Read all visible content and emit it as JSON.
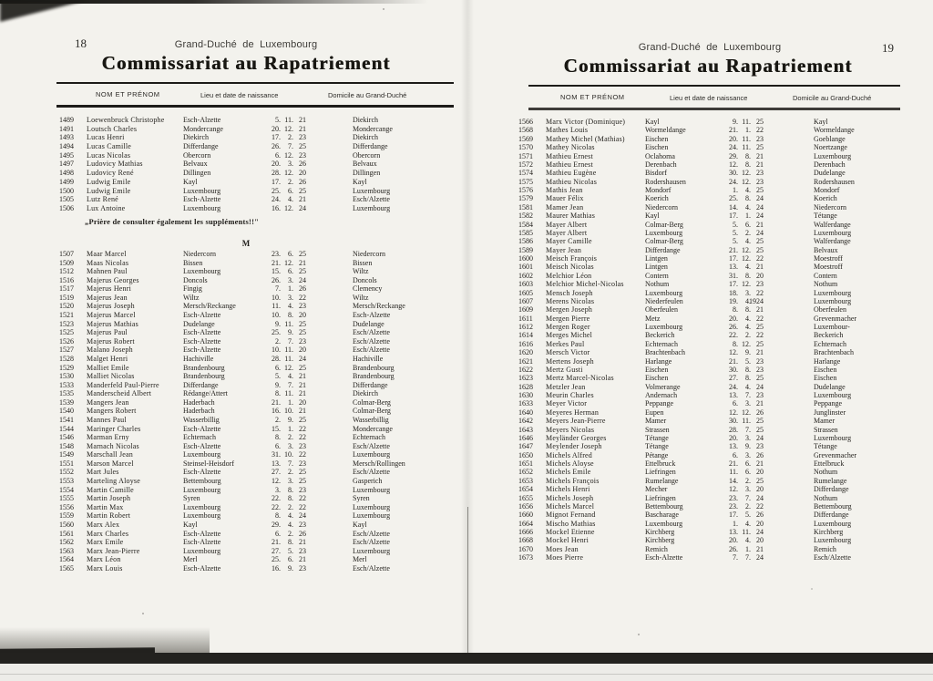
{
  "colors": {
    "paper": "#f3f2ed",
    "ink": "#24221e",
    "rule": "#1d1c19"
  },
  "left_page": {
    "page_number": "18",
    "running_header": "Grand-Duché de Luxembourg",
    "title": "Commissariat au Rapatriement",
    "columns": {
      "name": "NOM ET PRÉNOM",
      "birth": "Lieu et date de naissance",
      "domicile": "Domicile au Grand-Duché"
    },
    "note": "„Prière de consulter également les suppléments!!\"",
    "section_letter": "M",
    "block1_rows": [
      [
        "1489",
        "Loewenbruck Christophe",
        "Esch-Alzette",
        "5. 11. 21",
        "Diekirch"
      ],
      [
        "1491",
        "Loutsch Charles",
        "Mondercange",
        "20. 12. 21",
        "Mondercange"
      ],
      [
        "1493",
        "Lucas Henri",
        "Diekirch",
        "17. 2. 23",
        "Diekirch"
      ],
      [
        "1494",
        "Lucas Camille",
        "Differdange",
        "26. 7. 25",
        "Differdange"
      ],
      [
        "1495",
        "Lucas Nicolas",
        "Obercorn",
        "6. 12. 23",
        "Obercorn"
      ],
      [
        "1497",
        "Ludovicy Mathias",
        "Belvaux",
        "20. 3. 26",
        "Belvaux"
      ],
      [
        "1498",
        "Ludovicy René",
        "Dillingen",
        "28. 12. 20",
        "Dillingen"
      ],
      [
        "1499",
        "Ludwig Emile",
        "Kayl",
        "17. 2. 26",
        "Kayl"
      ],
      [
        "1500",
        "Ludwig Emile",
        "Luxembourg",
        "25. 6. 25",
        "Luxembourg"
      ],
      [
        "1505",
        "Lutz René",
        "Esch-Alzette",
        "24. 4. 21",
        "Esch/Alzette"
      ],
      [
        "1506",
        "Lux Antoine",
        "Luxembourg",
        "16. 12. 24",
        "Luxembourg"
      ]
    ],
    "block2_rows": [
      [
        "1507",
        "Maar Marcel",
        "Niedercorn",
        "23. 6. 25",
        "Niedercorn"
      ],
      [
        "1509",
        "Maas Nicolas",
        "Bissen",
        "21. 12. 21",
        "Bissen"
      ],
      [
        "1512",
        "Mahnen Paul",
        "Luxembourg",
        "15. 6. 25",
        "Wiltz"
      ],
      [
        "1516",
        "Majerus Georges",
        "Doncols",
        "26. 3. 24",
        "Doncols"
      ],
      [
        "1517",
        "Majerus Henri",
        "Fingig",
        "7. 1. 26",
        "Clemency"
      ],
      [
        "1519",
        "Majerus Jean",
        "Wiltz",
        "10. 3. 22",
        "Wiltz"
      ],
      [
        "1520",
        "Majerus Joseph",
        "Mersch/Reckange",
        "11. 4. 23",
        "Mersch/Reckange"
      ],
      [
        "1521",
        "Majerus Marcel",
        "Esch-Alzette",
        "10. 8. 20",
        "Esch-Alzette"
      ],
      [
        "1523",
        "Majerus Mathias",
        "Dudelange",
        "9. 11. 25",
        "Dudelange"
      ],
      [
        "1525",
        "Majerus Paul",
        "Esch-Alzette",
        "25. 9. 25",
        "Esch/Alzette"
      ],
      [
        "1526",
        "Majerus Robert",
        "Esch-Alzette",
        "2. 7. 23",
        "Esch/Alzette"
      ],
      [
        "1527",
        "Malano Joseph",
        "Esch-Alzette",
        "10. 11. 20",
        "Esch/Alzette"
      ],
      [
        "1528",
        "Malget Henri",
        "Hachiville",
        "28. 11. 24",
        "Hachiville"
      ],
      [
        "1529",
        "Malliet Emile",
        "Brandenbourg",
        "6. 12. 25",
        "Brandenbourg"
      ],
      [
        "1530",
        "Malliet Nicolas",
        "Brandenbourg",
        "5. 4. 21",
        "Brandenbourg"
      ],
      [
        "1533",
        "Manderfeld Paul-Pierre",
        "Differdange",
        "9. 7. 21",
        "Differdange"
      ],
      [
        "1535",
        "Manderscheid Albert",
        "Rédange/Attert",
        "8. 11. 21",
        "Diekirch"
      ],
      [
        "1539",
        "Mangers Jean",
        "Haderbach",
        "21. 1. 20",
        "Colmar-Berg"
      ],
      [
        "1540",
        "Mangers Robert",
        "Haderbach",
        "16. 10. 21",
        "Colmar-Berg"
      ],
      [
        "1541",
        "Mannes Paul",
        "Wasserbillig",
        "2. 9. 25",
        "Wasserbillig"
      ],
      [
        "1544",
        "Maringer Charles",
        "Esch-Alzette",
        "15. 1. 22",
        "Mondercange"
      ],
      [
        "1546",
        "Marman Erny",
        "Echternach",
        "8. 2. 22",
        "Echternach"
      ],
      [
        "1548",
        "Marnach Nicolas",
        "Esch-Alzette",
        "6. 3. 23",
        "Esch/Alzette"
      ],
      [
        "1549",
        "Marschall Jean",
        "Luxembourg",
        "31. 10. 22",
        "Luxembourg"
      ],
      [
        "1551",
        "Marson Marcel",
        "Steinsel-Heisdorf",
        "13. 7. 23",
        "Mersch/Rollingen"
      ],
      [
        "1552",
        "Mart Jules",
        "Esch-Alzette",
        "27. 2. 25",
        "Esch/Alzette"
      ],
      [
        "1553",
        "Marteling Aloyse",
        "Bettembourg",
        "12. 3. 25",
        "Gasperich"
      ],
      [
        "1554",
        "Martin Camille",
        "Luxembourg",
        "3. 8. 23",
        "Luxembourg"
      ],
      [
        "1555",
        "Martin Joseph",
        "Syren",
        "22. 8. 22",
        "Syren"
      ],
      [
        "1556",
        "Martin Max",
        "Luxembourg",
        "22. 2. 22",
        "Luxembourg"
      ],
      [
        "1559",
        "Martin Robert",
        "Luxembourg",
        "8. 4. 24",
        "Luxembourg"
      ],
      [
        "1560",
        "Marx Alex",
        "Kayl",
        "29. 4. 23",
        "Kayl"
      ],
      [
        "1561",
        "Marx Charles",
        "Esch-Alzette",
        "6. 2. 26",
        "Esch/Alzette"
      ],
      [
        "1562",
        "Marx Emile",
        "Esch-Alzette",
        "21. 8. 21",
        "Esch/Alzette"
      ],
      [
        "1563",
        "Marx Jean-Pierre",
        "Luxembourg",
        "27. 5. 23",
        "Luxembourg"
      ],
      [
        "1564",
        "Marx Léon",
        "Merl",
        "25. 6. 21",
        "Merl"
      ],
      [
        "1565",
        "Marx Louis",
        "Esch-Alzette",
        "16. 9. 23",
        "Esch/Alzette"
      ]
    ]
  },
  "right_page": {
    "page_number": "19",
    "running_header": "Grand-Duché de Luxembourg",
    "title": "Commissariat au Rapatriement",
    "columns": {
      "name": "NOM ET PRÉNOM",
      "birth": "Lieu et date de naissance",
      "domicile": "Domicile au Grand-Duché"
    },
    "rows": [
      [
        "1566",
        "Marx Victor (Dominique)",
        "Kayl",
        "9. 11. 25",
        "Kayl"
      ],
      [
        "1568",
        "Mathes Louis",
        "Wormeldange",
        "21. 1. 22",
        "Wormeldange"
      ],
      [
        "1569",
        "Mathey Michel (Mathias)",
        "Eischen",
        "20. 11. 23",
        "Goeblange"
      ],
      [
        "1570",
        "Mathey Nicolas",
        "Eischen",
        "24. 11. 25",
        "Noertzange"
      ],
      [
        "1571",
        "Mathieu Ernest",
        "Oclahoma",
        "29. 8. 21",
        "Luxembourg"
      ],
      [
        "1572",
        "Mathieu Ernest",
        "Derenbach",
        "12. 8. 21",
        "Derenbach"
      ],
      [
        "1574",
        "Mathieu Eugène",
        "Bisdorf",
        "30. 12. 23",
        "Dudelange"
      ],
      [
        "1575",
        "Mathieu Nicolas",
        "Rodershausen",
        "24. 12. 23",
        "Rodershausen"
      ],
      [
        "1576",
        "Mathis Jean",
        "Mondorf",
        "1. 4. 25",
        "Mondorf"
      ],
      [
        "1579",
        "Mauer Félix",
        "Koerich",
        "25. 8. 24",
        "Koerich"
      ],
      [
        "1581",
        "Mamer Jean",
        "Niedercorn",
        "14. 4. 24",
        "Niedercorn"
      ],
      [
        "1582",
        "Maurer Mathias",
        "Kayl",
        "17. 1. 24",
        "Tétange"
      ],
      [
        "1584",
        "Mayer Albert",
        "Colmar-Berg",
        "5. 6. 21",
        "Walferdange"
      ],
      [
        "1585",
        "Mayer Albert",
        "Luxembourg",
        "5. 2. 24",
        "Luxembourg"
      ],
      [
        "1586",
        "Mayer Camille",
        "Colmar-Berg",
        "5. 4. 25",
        "Walferdange"
      ],
      [
        "1589",
        "Mayer Jean",
        "Differdange",
        "21. 12. 25",
        "Belvaux"
      ],
      [
        "1600",
        "Meisch François",
        "Lintgen",
        "17. 12. 22",
        "Moestroff"
      ],
      [
        "1601",
        "Meisch Nicolas",
        "Lintgen",
        "13. 4. 21",
        "Moestroff"
      ],
      [
        "1602",
        "Melchior Léon",
        "Contern",
        "31. 8. 20",
        "Contern"
      ],
      [
        "1603",
        "Melchior Michel-Nicolas",
        "Nothum",
        "17. 12. 23",
        "Nothum"
      ],
      [
        "1605",
        "Mensch Joseph",
        "Luxembourg",
        "18. 3. 22",
        "Luxembourg"
      ],
      [
        "1607",
        "Merens Nicolas",
        "Niederfeulen",
        "19. 4. 1924",
        "Luxembourg"
      ],
      [
        "1609",
        "Mergen Joseph",
        "Oberfeulen",
        "8. 8. 21",
        "Oberfeulen"
      ],
      [
        "1611",
        "Mergen Pierre",
        "Metz",
        "20. 4. 22",
        "Grevenmacher"
      ],
      [
        "1612",
        "Mergen Roger",
        "Luxembourg",
        "26. 4. 25",
        "Luxembour-"
      ],
      [
        "1614",
        "Merges Michel",
        "Beckerich",
        "22. 2. 22",
        "Beckerich"
      ],
      [
        "1616",
        "Merkes Paul",
        "Echternach",
        "8. 12. 25",
        "Echternach"
      ],
      [
        "1620",
        "Mersch Victor",
        "Brachtenbach",
        "12. 9. 21",
        "Brachtenbach"
      ],
      [
        "1621",
        "Mertens Joseph",
        "Harlange",
        "21. 5. 23",
        "Harlange"
      ],
      [
        "1622",
        "Mertz Gusti",
        "Eischen",
        "30. 8. 23",
        "Eischen"
      ],
      [
        "1623",
        "Mertz Marcel-Nicolas",
        "Eischen",
        "27. 8. 25",
        "Eischen"
      ],
      [
        "1628",
        "Metzler Jean",
        "Volmerange",
        "24. 4. 24",
        "Dudelange"
      ],
      [
        "1630",
        "Meurin Charles",
        "Andernach",
        "13. 7. 23",
        "Luxembourg"
      ],
      [
        "1633",
        "Meyer Victor",
        "Peppange",
        "6. 3. 21",
        "Peppange"
      ],
      [
        "1640",
        "Meyeres Herman",
        "Eupen",
        "12. 12. 26",
        "Junglinster"
      ],
      [
        "1642",
        "Meyers Jean-Pierre",
        "Mamer",
        "30. 11. 25",
        "Mamer"
      ],
      [
        "1643",
        "Meyers Nicolas",
        "Strassen",
        "28. 7. 25",
        "Strassen"
      ],
      [
        "1646",
        "Meyländer Georges",
        "Tétange",
        "20. 3. 24",
        "Luxembourg"
      ],
      [
        "1647",
        "Meylender Joseph",
        "Tétange",
        "13. 9. 23",
        "Tétange"
      ],
      [
        "1650",
        "Michels Alfred",
        "Pétange",
        "6. 3. 26",
        "Grevenmacher"
      ],
      [
        "1651",
        "Michels Aloyse",
        "Ettelbruck",
        "21. 6. 21",
        "Ettelbruck"
      ],
      [
        "1652",
        "Michels Emile",
        "Liefringen",
        "11. 6. 20",
        "Nothum"
      ],
      [
        "1653",
        "Michels François",
        "Rumelange",
        "14. 2. 25",
        "Rumelange"
      ],
      [
        "1654",
        "Michels Henri",
        "Mecher",
        "12. 3. 20",
        "Differdange"
      ],
      [
        "1655",
        "Michels Joseph",
        "Liefringen",
        "23. 7. 24",
        "Nothum"
      ],
      [
        "1656",
        "Michels Marcel",
        "Bettembourg",
        "23. 2. 22",
        "Bettembourg"
      ],
      [
        "1660",
        "Mignot Fernand",
        "Bascharage",
        "17. 5. 26",
        "Differdange"
      ],
      [
        "1664",
        "Mischo Mathias",
        "Luxembourg",
        "1. 4. 20",
        "Luxembourg"
      ],
      [
        "1666",
        "Mockel Etienne",
        "Kirchberg",
        "13. 11. 24",
        "Kirchberg"
      ],
      [
        "1668",
        "Mockel Henri",
        "Kirchberg",
        "20. 4. 20",
        "Luxembourg"
      ],
      [
        "1670",
        "Moes Jean",
        "Remich",
        "26. 1. 21",
        "Remich"
      ],
      [
        "1673",
        "Moes Pierre",
        "Esch-Alzette",
        "7. 7. 24",
        "Esch/Alzette"
      ]
    ]
  }
}
